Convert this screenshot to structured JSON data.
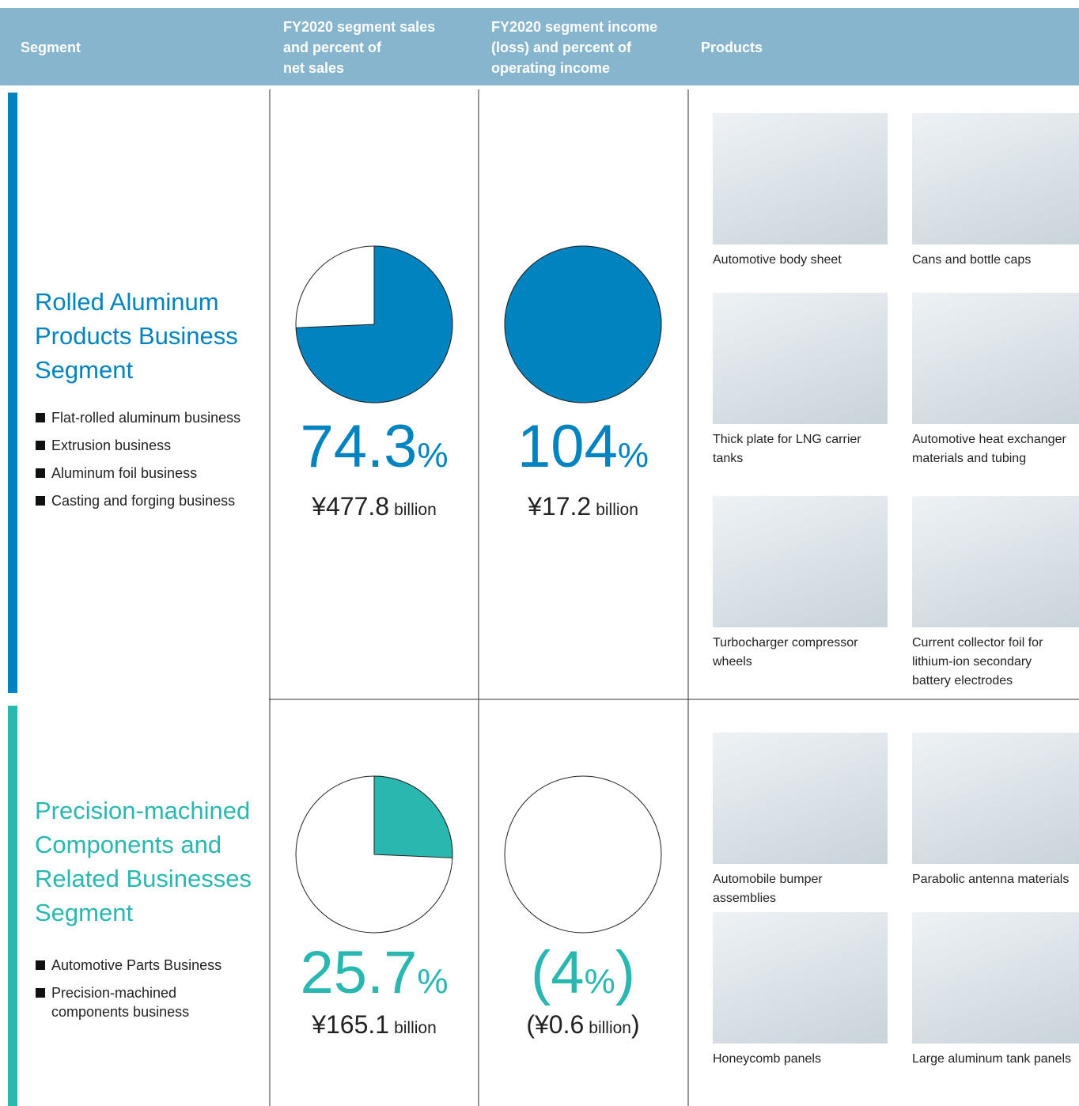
{
  "header": {
    "segment": "Segment",
    "sales": [
      "FY2020 segment sales",
      "and percent of",
      "net sales"
    ],
    "income": [
      "FY2020 segment income",
      "(loss) and percent of",
      "operating income"
    ],
    "products": "Products"
  },
  "segments": [
    {
      "title": [
        "Rolled Aluminum",
        "Products Business",
        "Segment"
      ],
      "color": "#0083bf",
      "businesses": [
        [
          "Flat-rolled aluminum business"
        ],
        [
          "Extrusion business"
        ],
        [
          "Aluminum foil business"
        ],
        [
          "Casting and forging business"
        ]
      ],
      "sales": {
        "percent": 74.3,
        "percent_label": "74.3",
        "percent_unit": "%",
        "amount": "¥477.8",
        "amount_unit": "billion"
      },
      "income": {
        "percent": 104,
        "percent_label": "104",
        "percent_unit": "%",
        "amount": "¥17.2",
        "amount_unit": "billion"
      },
      "products": [
        [
          "Automotive body sheet"
        ],
        [
          "Cans and bottle caps"
        ],
        [
          "Thick plate for LNG carrier",
          "tanks"
        ],
        [
          "Automotive heat exchanger",
          "materials and tubing"
        ],
        [
          "Turbocharger compressor",
          "wheels"
        ],
        [
          "Current collector foil for",
          "lithium-ion secondary",
          "battery electrodes"
        ]
      ]
    },
    {
      "title": [
        "Precision-machined",
        "Components and",
        "Related Businesses",
        "Segment"
      ],
      "color": "#2ab7b0",
      "businesses": [
        [
          "Automotive Parts Business"
        ],
        [
          "Precision-machined",
          "components business"
        ]
      ],
      "sales": {
        "percent": 25.7,
        "percent_label": "25.7",
        "percent_unit": "%",
        "amount": "¥165.1",
        "amount_unit": "billion"
      },
      "income": {
        "percent": -4,
        "percent_label": "(4",
        "percent_unit": "%",
        "percent_suffix": ")",
        "amount": "(¥0.6",
        "amount_unit": "billion",
        "amount_suffix": ")"
      },
      "products": [
        [
          "Automobile bumper",
          "assemblies"
        ],
        [
          "Parabolic antenna materials"
        ],
        [
          "Honeycomb panels"
        ],
        [
          "Large aluminum tank panels"
        ]
      ]
    }
  ]
}
